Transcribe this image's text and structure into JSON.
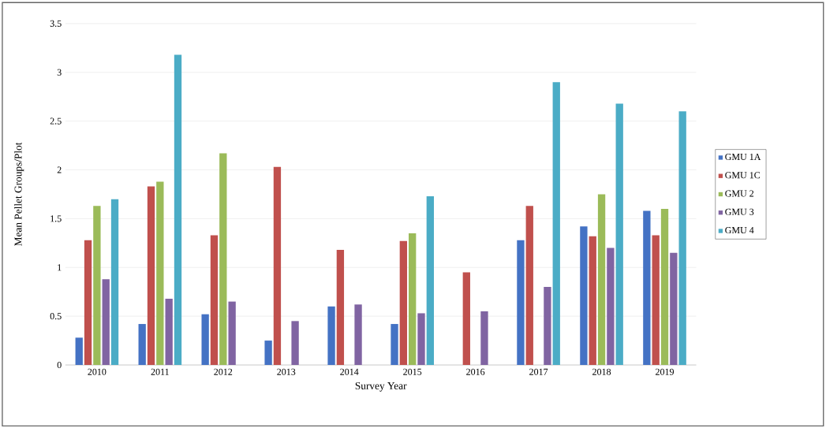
{
  "chart_data": {
    "type": "bar",
    "xlabel": "Survey Year",
    "ylabel": "Mean Pellet Groups/Plot",
    "categories": [
      "2010",
      "2011",
      "2012",
      "2013",
      "2014",
      "2015",
      "2016",
      "2017",
      "2018",
      "2019"
    ],
    "series": [
      {
        "name": "GMU 1A",
        "color": "#4472c4",
        "values": [
          0.28,
          0.42,
          0.52,
          0.25,
          0.6,
          0.42,
          null,
          1.28,
          1.42,
          1.58
        ]
      },
      {
        "name": "GMU 1C",
        "color": "#c0504d",
        "values": [
          1.28,
          1.83,
          1.33,
          2.03,
          1.18,
          1.27,
          0.95,
          1.63,
          1.32,
          1.33
        ]
      },
      {
        "name": "GMU 2",
        "color": "#9bbb59",
        "values": [
          1.63,
          1.88,
          2.17,
          null,
          null,
          1.35,
          null,
          null,
          1.75,
          1.6
        ]
      },
      {
        "name": "GMU 3",
        "color": "#8064a2",
        "values": [
          0.88,
          0.68,
          0.65,
          0.45,
          0.62,
          0.53,
          0.55,
          0.8,
          1.2,
          1.15
        ]
      },
      {
        "name": "GMU 4",
        "color": "#4bacc6",
        "values": [
          1.7,
          3.18,
          null,
          null,
          null,
          1.73,
          null,
          2.9,
          2.68,
          2.6
        ]
      }
    ],
    "ylim": [
      0,
      3.5
    ],
    "yticks": [
      0,
      0.5,
      1,
      1.5,
      2,
      2.5,
      3,
      3.5
    ],
    "grid": "y",
    "legend": "right"
  }
}
